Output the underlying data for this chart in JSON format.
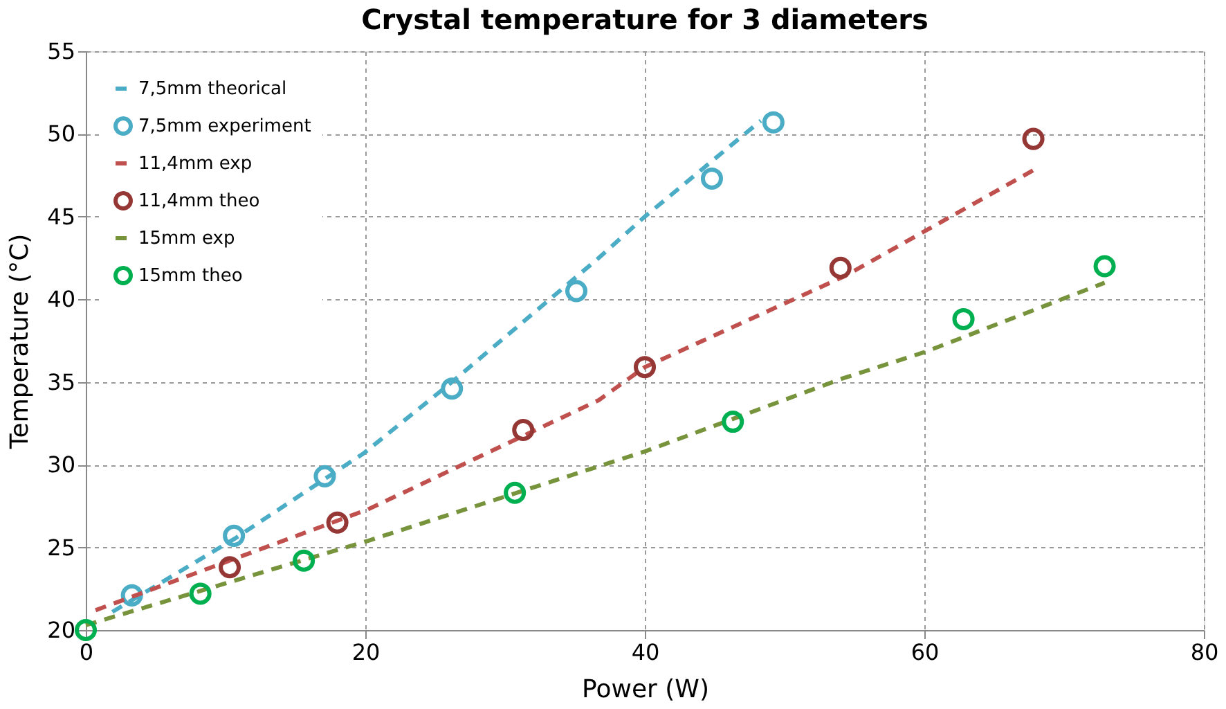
{
  "chart_data": {
    "type": "line",
    "title": "Crystal temperature for 3 diameters",
    "xlabel": "Power (W)",
    "ylabel": "Temperature (°C)",
    "xlim": [
      0,
      80
    ],
    "xticks": [
      0,
      20,
      40,
      60,
      80
    ],
    "ylim": [
      20,
      55
    ],
    "yticks": [
      20,
      25,
      30,
      35,
      40,
      45,
      50,
      55
    ],
    "grid": true,
    "legend": "top left",
    "series": [
      {
        "name": "7,5mm theorical",
        "line_style": "dashed",
        "marker": "none",
        "color": "#4bacc6",
        "x": [
          1.9,
          10.6,
          19.9,
          26.2,
          36.7,
          40.0,
          48.3
        ],
        "values": [
          21.1,
          25.5,
          30.7,
          35.0,
          42.5,
          45.0,
          50.8
        ]
      },
      {
        "name": "7,5mm experiment",
        "type": "scatter",
        "marker": "circle",
        "color": "#4bacc6",
        "x": [
          3.3,
          10.6,
          17.1,
          26.2,
          35.1,
          44.8,
          49.2
        ],
        "values": [
          22.1,
          25.7,
          29.3,
          34.6,
          40.5,
          47.3,
          50.7
        ]
      },
      {
        "name": "11,4mm exp",
        "line_style": "dashed",
        "marker": "none",
        "color": "#c0504d",
        "x": [
          0.7,
          20.2,
          36.7,
          40.0,
          54.3,
          68.0
        ],
        "values": [
          21.2,
          27.3,
          33.9,
          35.9,
          41.4,
          47.9
        ]
      },
      {
        "name": "11,4mm theo",
        "type": "scatter",
        "marker": "circle",
        "color": "#953735",
        "x": [
          10.3,
          18.0,
          31.3,
          40.0,
          54.0,
          67.8
        ],
        "values": [
          23.8,
          26.5,
          32.1,
          35.9,
          41.9,
          49.7
        ]
      },
      {
        "name": "15mm exp",
        "line_style": "dashed",
        "marker": "none",
        "color": "#77933c",
        "x": [
          0,
          20.2,
          36.7,
          40.0,
          54.1,
          60.0,
          72.9
        ],
        "values": [
          20.3,
          25.4,
          29.9,
          30.8,
          35.2,
          36.8,
          41.0
        ]
      },
      {
        "name": "15mm theo",
        "type": "scatter",
        "marker": "circle",
        "color": "#00b050",
        "x": [
          0,
          8.2,
          15.6,
          30.7,
          46.3,
          62.8,
          72.9
        ],
        "values": [
          20.0,
          22.2,
          24.2,
          28.3,
          32.6,
          38.8,
          42.0
        ]
      }
    ]
  }
}
